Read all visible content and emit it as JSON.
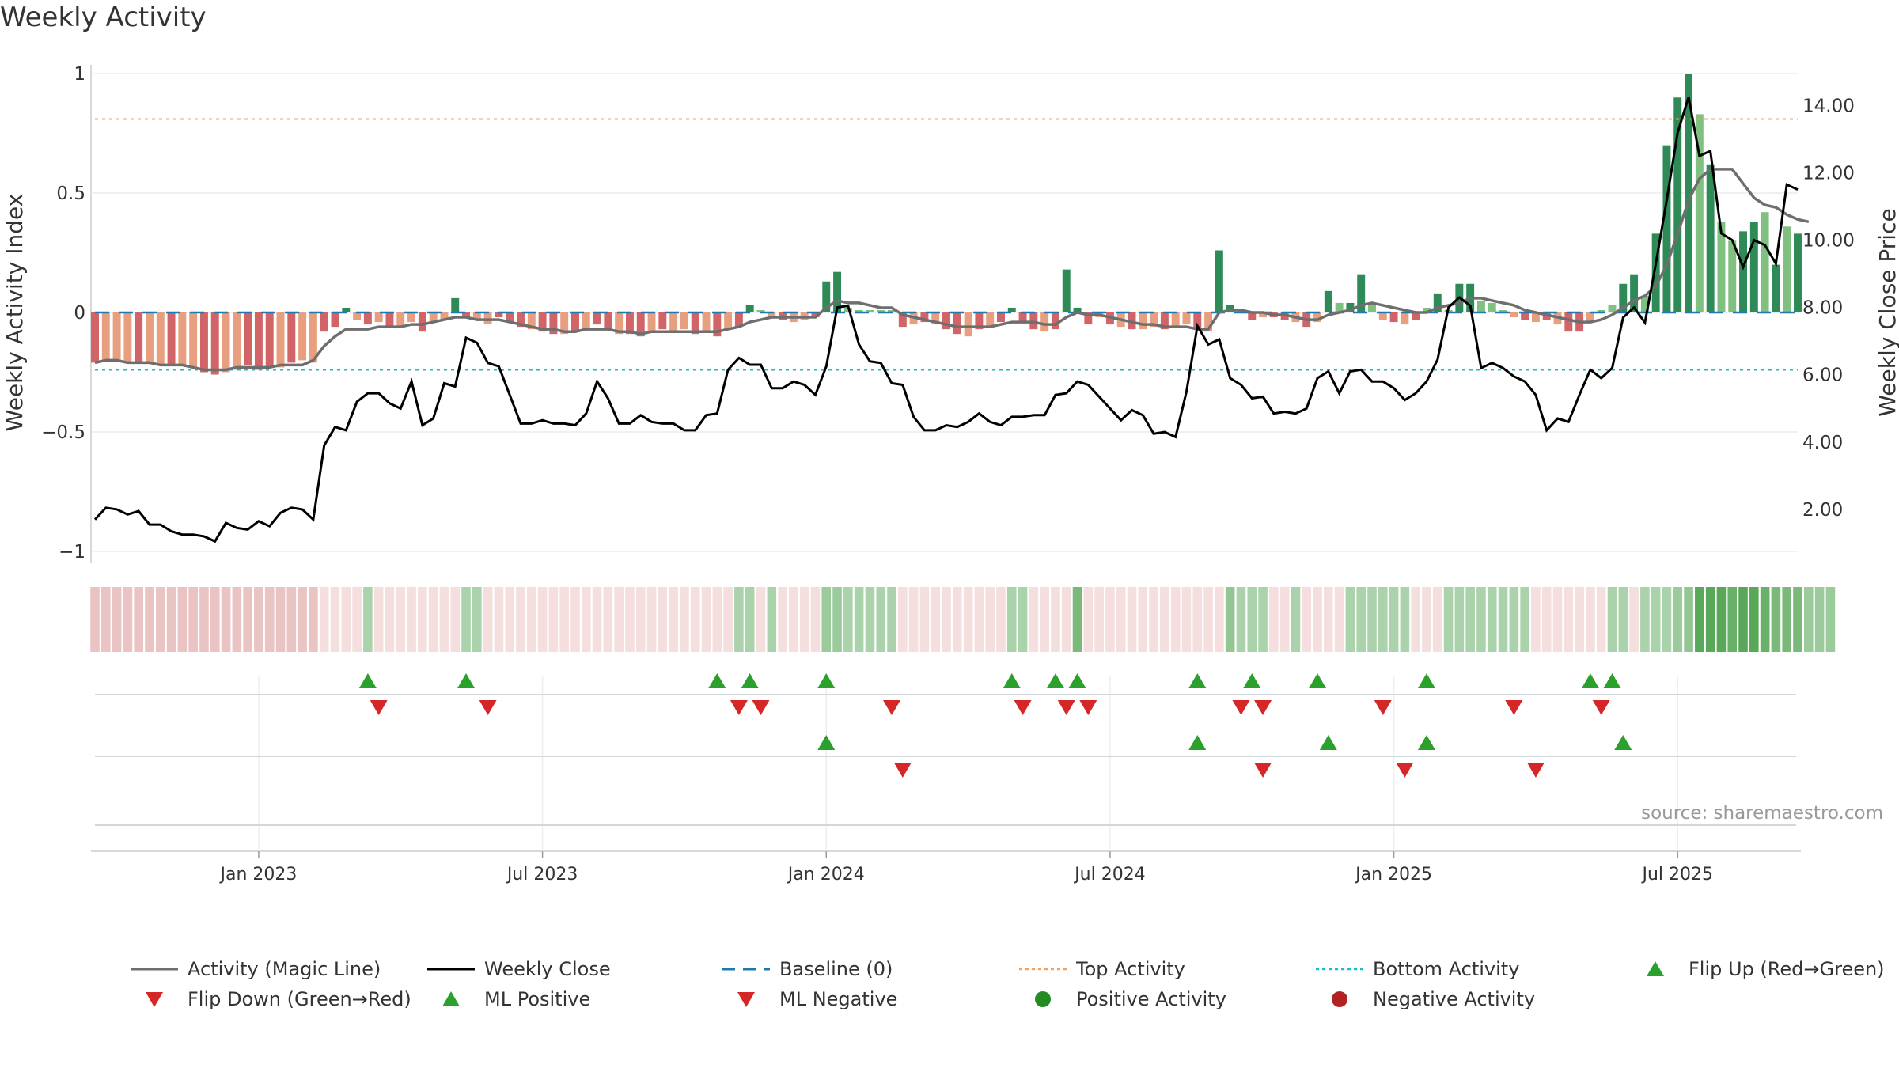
{
  "chart_data": {
    "type": "bar+line",
    "title": "Weekly Activity",
    "source": "source: sharemaestro.com",
    "ylabel_left": "Weekly Activity Index",
    "ylabel_right": "Weekly Close Price",
    "ylim_left": [
      -1.05,
      1.05
    ],
    "ylim_right": [
      0.4,
      15.3
    ],
    "left_ticks": [
      {
        "v": 1,
        "label": "1"
      },
      {
        "v": 0.5,
        "label": "0.5"
      },
      {
        "v": 0,
        "label": "0"
      },
      {
        "v": -0.5,
        "label": "−0.5"
      },
      {
        "v": -1,
        "label": "−1"
      }
    ],
    "right_ticks": [
      {
        "v": 14,
        "label": "14.00"
      },
      {
        "v": 12,
        "label": "12.00"
      },
      {
        "v": 10,
        "label": "10.00"
      },
      {
        "v": 8,
        "label": "8.00"
      },
      {
        "v": 6,
        "label": "6.00"
      },
      {
        "v": 4,
        "label": "4.00"
      },
      {
        "v": 2,
        "label": "2.00"
      }
    ],
    "x_tick_labels": [
      {
        "i": 15,
        "label": "Jan 2023"
      },
      {
        "i": 41,
        "label": "Jul 2023"
      },
      {
        "i": 67,
        "label": "Jan 2024"
      },
      {
        "i": 93,
        "label": "Jul 2024"
      },
      {
        "i": 119,
        "label": "Jan 2025"
      },
      {
        "i": 145,
        "label": "Jul 2025"
      }
    ],
    "top_activity": 0.81,
    "bottom_activity": -0.24,
    "baseline": 0,
    "activity": [
      -0.21,
      -0.2,
      -0.2,
      -0.21,
      -0.21,
      -0.21,
      -0.22,
      -0.22,
      -0.22,
      -0.23,
      -0.25,
      -0.26,
      -0.25,
      -0.24,
      -0.22,
      -0.24,
      -0.23,
      -0.23,
      -0.21,
      -0.2,
      -0.21,
      -0.08,
      -0.06,
      0.02,
      -0.03,
      -0.05,
      -0.04,
      -0.06,
      -0.06,
      -0.04,
      -0.08,
      -0.04,
      -0.03,
      0.06,
      -0.02,
      -0.03,
      -0.05,
      -0.02,
      -0.04,
      -0.06,
      -0.07,
      -0.08,
      -0.09,
      -0.09,
      -0.08,
      -0.07,
      -0.05,
      -0.07,
      -0.09,
      -0.09,
      -0.1,
      -0.08,
      -0.07,
      -0.08,
      -0.07,
      -0.09,
      -0.08,
      -0.1,
      -0.07,
      -0.06,
      0.03,
      0.01,
      -0.02,
      -0.03,
      -0.04,
      -0.03,
      -0.02,
      0.13,
      0.17,
      0.02,
      0.01,
      0.01,
      0.01,
      0.01,
      -0.06,
      -0.05,
      -0.04,
      -0.05,
      -0.07,
      -0.09,
      -0.1,
      -0.07,
      -0.06,
      -0.04,
      0.02,
      -0.04,
      -0.07,
      -0.08,
      -0.07,
      0.18,
      0.02,
      -0.05,
      -0.02,
      -0.05,
      -0.06,
      -0.07,
      -0.07,
      -0.06,
      -0.07,
      -0.06,
      -0.05,
      -0.07,
      -0.08,
      0.26,
      0.03,
      0.01,
      -0.03,
      -0.02,
      -0.02,
      -0.03,
      -0.04,
      -0.06,
      -0.04,
      0.09,
      0.04,
      0.04,
      0.16,
      0.04,
      -0.03,
      -0.04,
      -0.05,
      -0.03,
      0.02,
      0.08,
      0.01,
      0.12,
      0.12,
      0.05,
      0.04,
      0.01,
      -0.02,
      -0.03,
      -0.04,
      -0.03,
      -0.05,
      -0.08,
      -0.08,
      -0.04,
      0.01,
      0.03,
      0.12,
      0.16,
      0.07,
      0.33,
      0.7,
      0.9,
      1.0,
      0.83,
      0.62,
      0.38,
      0.3,
      0.34,
      0.38,
      0.42,
      0.2,
      0.36,
      0.33
    ],
    "bar_colors": [
      "#d16466",
      "#e89f7f",
      "#e89f7f",
      "#e89f7f",
      "#d16466",
      "#e89f7f",
      "#e89f7f",
      "#d16466",
      "#e89f7f",
      "#e89f7f",
      "#d16466",
      "#d16466",
      "#e89f7f",
      "#e89f7f",
      "#d16466",
      "#d16466",
      "#d16466",
      "#e89f7f",
      "#d16466",
      "#e89f7f",
      "#e89f7f",
      "#d16466",
      "#d16466",
      "#2e8b57",
      "#e89f7f",
      "#d16466",
      "#e89f7f",
      "#d16466",
      "#e89f7f",
      "#e89f7f",
      "#d16466",
      "#e89f7f",
      "#e89f7f",
      "#2e8b57",
      "#d16466",
      "#e89f7f",
      "#e89f7f",
      "#d16466",
      "#d16466",
      "#d16466",
      "#e89f7f",
      "#d16466",
      "#d16466",
      "#e89f7f",
      "#d16466",
      "#e89f7f",
      "#d16466",
      "#d16466",
      "#e89f7f",
      "#d16466",
      "#d16466",
      "#e89f7f",
      "#d16466",
      "#e89f7f",
      "#e89f7f",
      "#d16466",
      "#e89f7f",
      "#d16466",
      "#e89f7f",
      "#d16466",
      "#2e8b57",
      "#80c080",
      "#e89f7f",
      "#d16466",
      "#e89f7f",
      "#e89f7f",
      "#d16466",
      "#2e8b57",
      "#2e8b57",
      "#80c080",
      "#80c080",
      "#80c080",
      "#80c080",
      "#80c080",
      "#d16466",
      "#e89f7f",
      "#d16466",
      "#e89f7f",
      "#d16466",
      "#d16466",
      "#e89f7f",
      "#d16466",
      "#e89f7f",
      "#d16466",
      "#2e8b57",
      "#d16466",
      "#d16466",
      "#e89f7f",
      "#d16466",
      "#2e8b57",
      "#2e8b57",
      "#d16466",
      "#e89f7f",
      "#d16466",
      "#e89f7f",
      "#d16466",
      "#e89f7f",
      "#e89f7f",
      "#d16466",
      "#e89f7f",
      "#e89f7f",
      "#d16466",
      "#e89f7f",
      "#2e8b57",
      "#2e8b57",
      "#80c080",
      "#d16466",
      "#e89f7f",
      "#d16466",
      "#d16466",
      "#e89f7f",
      "#d16466",
      "#e89f7f",
      "#2e8b57",
      "#80c080",
      "#2e8b57",
      "#2e8b57",
      "#80c080",
      "#e89f7f",
      "#d16466",
      "#e89f7f",
      "#d16466",
      "#80c080",
      "#2e8b57",
      "#80c080",
      "#2e8b57",
      "#2e8b57",
      "#80c080",
      "#80c080",
      "#80c080",
      "#e89f7f",
      "#d16466",
      "#e89f7f",
      "#d16466",
      "#e89f7f",
      "#d16466",
      "#d16466",
      "#e89f7f",
      "#80c080",
      "#80c080",
      "#2e8b57",
      "#2e8b57",
      "#80c080",
      "#2e8b57",
      "#2e8b57",
      "#2e8b57",
      "#2e8b57",
      "#80c080",
      "#2e8b57",
      "#80c080",
      "#80c080",
      "#2e8b57",
      "#2e8b57",
      "#80c080",
      "#2e8b57",
      "#80c080",
      "#2e8b57",
      "#80c080"
    ],
    "magic_line": [
      -0.21,
      -0.2,
      -0.2,
      -0.21,
      -0.21,
      -0.21,
      -0.22,
      -0.22,
      -0.22,
      -0.23,
      -0.24,
      -0.24,
      -0.24,
      -0.23,
      -0.23,
      -0.23,
      -0.23,
      -0.22,
      -0.22,
      -0.22,
      -0.2,
      -0.14,
      -0.1,
      -0.07,
      -0.07,
      -0.07,
      -0.06,
      -0.06,
      -0.06,
      -0.05,
      -0.05,
      -0.04,
      -0.03,
      -0.02,
      -0.02,
      -0.03,
      -0.03,
      -0.03,
      -0.04,
      -0.05,
      -0.06,
      -0.07,
      -0.07,
      -0.08,
      -0.08,
      -0.07,
      -0.07,
      -0.07,
      -0.08,
      -0.08,
      -0.09,
      -0.08,
      -0.08,
      -0.08,
      -0.08,
      -0.08,
      -0.08,
      -0.08,
      -0.07,
      -0.06,
      -0.04,
      -0.03,
      -0.02,
      -0.02,
      -0.02,
      -0.02,
      -0.02,
      0.02,
      0.05,
      0.04,
      0.04,
      0.03,
      0.02,
      0.02,
      -0.01,
      -0.02,
      -0.03,
      -0.04,
      -0.05,
      -0.06,
      -0.06,
      -0.06,
      -0.06,
      -0.05,
      -0.04,
      -0.04,
      -0.04,
      -0.05,
      -0.05,
      -0.02,
      0.0,
      -0.01,
      -0.01,
      -0.02,
      -0.03,
      -0.04,
      -0.05,
      -0.05,
      -0.06,
      -0.06,
      -0.06,
      -0.07,
      -0.07,
      0.0,
      0.01,
      0.01,
      0.0,
      0.0,
      -0.01,
      -0.01,
      -0.02,
      -0.03,
      -0.03,
      -0.01,
      0.0,
      0.01,
      0.03,
      0.04,
      0.03,
      0.02,
      0.01,
      0.0,
      0.0,
      0.02,
      0.03,
      0.04,
      0.06,
      0.06,
      0.05,
      0.04,
      0.03,
      0.01,
      0.0,
      -0.01,
      -0.02,
      -0.03,
      -0.04,
      -0.04,
      -0.03,
      -0.01,
      0.02,
      0.05,
      0.07,
      0.11,
      0.2,
      0.33,
      0.47,
      0.56,
      0.6,
      0.6,
      0.6,
      0.54,
      0.48,
      0.45,
      0.44,
      0.41,
      0.39,
      0.38
    ],
    "close": [
      1.7,
      2.05,
      2.0,
      1.85,
      1.95,
      1.55,
      1.55,
      1.35,
      1.25,
      1.25,
      1.2,
      1.05,
      1.6,
      1.45,
      1.4,
      1.65,
      1.5,
      1.9,
      2.05,
      2.0,
      1.7,
      3.9,
      4.45,
      4.35,
      5.2,
      5.45,
      5.45,
      5.15,
      5.0,
      5.8,
      4.5,
      4.7,
      5.75,
      5.65,
      7.1,
      6.95,
      6.35,
      6.25,
      5.4,
      4.55,
      4.55,
      4.65,
      4.55,
      4.55,
      4.5,
      4.85,
      5.8,
      5.3,
      4.55,
      4.55,
      4.8,
      4.6,
      4.55,
      4.55,
      4.35,
      4.35,
      4.8,
      4.85,
      6.15,
      6.5,
      6.3,
      6.3,
      5.6,
      5.6,
      5.8,
      5.7,
      5.4,
      6.25,
      8.0,
      8.05,
      6.9,
      6.4,
      6.35,
      5.75,
      5.7,
      4.75,
      4.35,
      4.35,
      4.5,
      4.45,
      4.6,
      4.85,
      4.6,
      4.5,
      4.75,
      4.75,
      4.8,
      4.8,
      5.4,
      5.45,
      5.8,
      5.7,
      5.35,
      5.0,
      4.65,
      4.95,
      4.8,
      4.25,
      4.3,
      4.15,
      5.5,
      7.45,
      6.9,
      7.05,
      5.9,
      5.7,
      5.3,
      5.35,
      4.85,
      4.9,
      4.85,
      5.0,
      5.9,
      6.1,
      5.45,
      6.1,
      6.15,
      5.8,
      5.8,
      5.6,
      5.25,
      5.45,
      5.8,
      6.45,
      8.0,
      8.3,
      8.05,
      6.2,
      6.35,
      6.2,
      5.95,
      5.8,
      5.4,
      4.35,
      4.7,
      4.6,
      5.4,
      6.15,
      5.9,
      6.2,
      7.7,
      8.0,
      7.55,
      9.3,
      11.2,
      13.2,
      14.25,
      12.5,
      12.65,
      10.2,
      10.0,
      9.2,
      10.0,
      9.85,
      9.3,
      11.65,
      11.5
    ],
    "heat_strip": [
      -0.9,
      -0.9,
      -0.9,
      -0.9,
      -0.9,
      -0.9,
      -0.9,
      -0.9,
      -0.9,
      -0.9,
      -0.9,
      -0.9,
      -0.9,
      -0.9,
      -0.9,
      -0.9,
      -0.9,
      -0.9,
      -0.9,
      -0.9,
      -0.9,
      -0.5,
      -0.5,
      -0.5,
      -0.5,
      0.5,
      -0.5,
      -0.5,
      -0.5,
      -0.5,
      -0.5,
      -0.5,
      -0.5,
      -0.5,
      0.5,
      0.5,
      -0.5,
      -0.5,
      -0.5,
      -0.5,
      -0.5,
      -0.5,
      -0.5,
      -0.5,
      -0.5,
      -0.5,
      -0.5,
      -0.5,
      -0.5,
      -0.5,
      -0.5,
      -0.5,
      -0.5,
      -0.5,
      -0.5,
      -0.5,
      -0.5,
      -0.5,
      -0.5,
      0.5,
      0.5,
      -0.5,
      0.5,
      -0.5,
      -0.5,
      -0.5,
      -0.5,
      0.6,
      0.6,
      0.5,
      0.5,
      0.5,
      0.5,
      0.5,
      -0.5,
      -0.5,
      -0.5,
      -0.5,
      -0.5,
      -0.5,
      -0.5,
      -0.5,
      -0.5,
      -0.5,
      0.5,
      0.5,
      -0.5,
      -0.5,
      -0.5,
      -0.5,
      0.8,
      -0.5,
      -0.5,
      -0.5,
      -0.5,
      -0.5,
      -0.5,
      -0.5,
      -0.5,
      -0.5,
      -0.5,
      -0.5,
      -0.5,
      -0.5,
      0.65,
      0.5,
      0.5,
      0.5,
      -0.5,
      -0.5,
      0.5,
      -0.5,
      -0.5,
      -0.5,
      -0.5,
      0.5,
      0.5,
      0.5,
      0.5,
      0.5,
      0.5,
      -0.5,
      -0.5,
      -0.5,
      0.5,
      0.5,
      0.5,
      0.5,
      0.5,
      0.5,
      0.5,
      0.5,
      -0.5,
      -0.5,
      -0.5,
      -0.5,
      -0.5,
      -0.5,
      -0.5,
      0.5,
      0.5,
      -0.5,
      0.5,
      0.5,
      0.5,
      0.6,
      0.65,
      1.0,
      1.0,
      1.0,
      0.9,
      1.0,
      1.0,
      0.9,
      0.8,
      0.8,
      0.8,
      0.6,
      0.6,
      0.6
    ],
    "flip_up_idx": [
      25,
      34,
      57,
      60,
      67,
      84,
      88,
      90,
      101,
      106,
      112,
      122,
      137,
      139
    ],
    "flip_down_idx": [
      26,
      36,
      59,
      61,
      73,
      85,
      89,
      91,
      105,
      107,
      118,
      130,
      138
    ],
    "ml_positive_idx": [
      67,
      101,
      113,
      122,
      140
    ],
    "ml_negative_idx": [
      74,
      107,
      120,
      132
    ],
    "legend": [
      {
        "label": "Activity (Magic Line)",
        "kind": "line",
        "color": "#6e6e6e"
      },
      {
        "label": "Weekly Close",
        "kind": "line",
        "color": "#000000"
      },
      {
        "label": "Baseline (0)",
        "kind": "dash",
        "color": "#1f77b4"
      },
      {
        "label": "Top Activity",
        "kind": "dot",
        "color": "#f4a261"
      },
      {
        "label": "Bottom Activity",
        "kind": "dot",
        "color": "#17becf"
      },
      {
        "label": "Flip Up (Red→Green)",
        "kind": "tri-up",
        "color": "#2ca02c"
      },
      {
        "label": "Flip Down (Green→Red)",
        "kind": "tri-down",
        "color": "#d62728"
      },
      {
        "label": "ML Positive",
        "kind": "tri-up",
        "color": "#2ca02c"
      },
      {
        "label": "ML Negative",
        "kind": "tri-down",
        "color": "#d62728"
      },
      {
        "label": "Positive Activity",
        "kind": "circle",
        "color": "#228b22"
      },
      {
        "label": "Negative Activity",
        "kind": "circle",
        "color": "#b22222"
      }
    ]
  }
}
